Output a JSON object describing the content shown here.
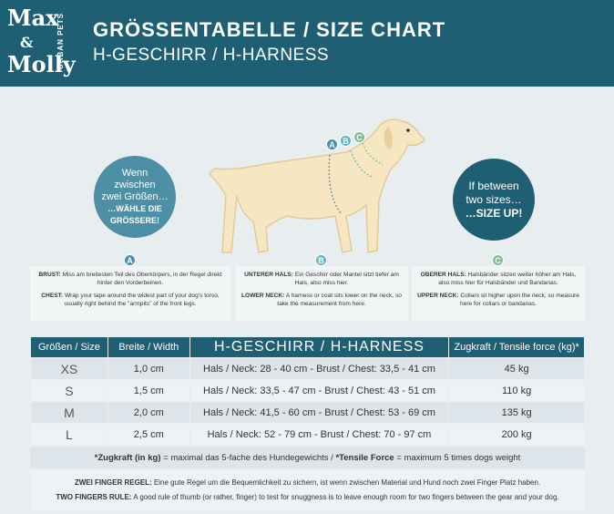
{
  "header": {
    "logo": {
      "line1": "Max",
      "amp": "&",
      "line2": "Molly",
      "tagline": "URBAN PETS"
    },
    "title": "GRÖSSENTABELLE / SIZE CHART",
    "subtitle": "H-GESCHIRR / H-HARNESS"
  },
  "callouts": {
    "left": {
      "line1": "Wenn",
      "line2": "zwischen",
      "line3": "zwei Größen…",
      "line4": "…WÄHLE DIE",
      "line5": "GRÖSSERE!"
    },
    "right": {
      "line1": "If between",
      "line2": "two sizes…",
      "line3": "…SIZE UP!"
    }
  },
  "measurements": [
    {
      "badge": "A",
      "de_label": "BRUST:",
      "de_text": "Miss am breitesten Teil des Oberkörpers, in der Regel direkt hinter den Vorderbeinen.",
      "en_label": "CHEST:",
      "en_text": "Wrap your tape around the widest part of your dog's torso, usually right behind the \"armpits\" of the front legs."
    },
    {
      "badge": "B",
      "de_label": "UNTERER HALS:",
      "de_text": "Ein Geschirr oder Mantel sitzt tiefer am Hals, also miss hier.",
      "en_label": "LOWER NECK:",
      "en_text": "A harness or coat sits lower on the neck, so take the measurement from here."
    },
    {
      "badge": "C",
      "de_label": "OBERER HALS:",
      "de_text": "Halsbänder sitzen weiter höher am Hals, also miss hier für Halsbänder und Bandanas.",
      "en_label": "UPPER NECK:",
      "en_text": "Collars sit higher upon the neck, so measure here for collars or bandanas."
    }
  ],
  "table": {
    "headers": [
      "Größen / Size",
      "Breite / Width",
      "H-GESCHIRR / H-HARNESS",
      "Zugkraft / Tensile force (kg)*"
    ],
    "rows": [
      [
        "XS",
        "1,0 cm",
        "Hals / Neck: 28 - 40 cm - Brust / Chest: 33,5 - 41 cm",
        "45 kg"
      ],
      [
        "S",
        "1,5 cm",
        "Hals / Neck: 33,5 - 47 cm - Brust / Chest: 43 - 51 cm",
        "110 kg"
      ],
      [
        "M",
        "2,0 cm",
        "Hals / Neck: 41,5 - 60 cm - Brust / Chest: 53 - 69 cm",
        "135 kg"
      ],
      [
        "L",
        "2,5 cm",
        "Hals / Neck: 52 - 79 cm - Brust / Chest: 70 - 97 cm",
        "200 kg"
      ]
    ]
  },
  "footnote": [
    "*Zugkraft (in kg)",
    " = maximal das 5-fache des Hundegewichts / ",
    "*Tensile Force",
    " = maximum 5 times dogs weight"
  ],
  "rules": [
    {
      "label": "ZWEI FINGER REGEL:",
      "text": " Eine gute Regel um die Bequemlichkeit zu sichern, ist wenn zwischen Material und Hund noch zwei Finger Platz haben."
    },
    {
      "label": "TWO FINGERS RULE:",
      "text": " A good rule of thumb (or rather, finger) to test for snuggness is to leave enough room for two fingers between the gear and your dog."
    }
  ]
}
